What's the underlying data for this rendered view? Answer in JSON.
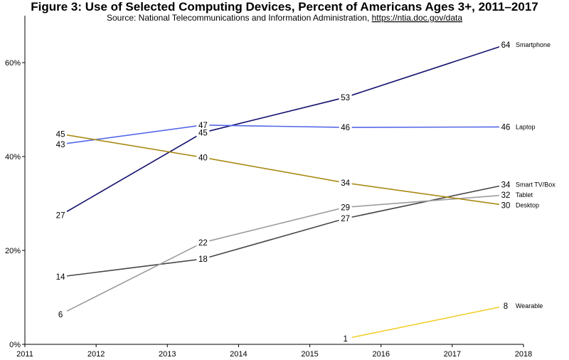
{
  "chart_data": {
    "type": "line",
    "title": "Figure 3: Use of Selected Computing Devices, Percent of Americans Ages 3+, 2011–2017",
    "subtitle": "Source: National Telecommunications and Information Administration, ",
    "subtitle_link": "https://ntia.doc.gov/data",
    "xlabel": "",
    "ylabel": "",
    "xlim": [
      2011,
      2018
    ],
    "ylim": [
      0,
      70
    ],
    "x_ticks": [
      2011,
      2012,
      2013,
      2014,
      2015,
      2016,
      2017,
      2018
    ],
    "y_ticks": [
      0,
      20,
      40,
      60
    ],
    "y_tick_suffix": "%",
    "grid": false,
    "legend": "end-of-line labels",
    "series": [
      {
        "name": "Smartphone",
        "color": "#14106e",
        "x": [
          2011.5,
          2013.5,
          2015.5,
          2017.75
        ],
        "y": [
          27.5,
          45.1,
          52.6,
          63.8
        ],
        "labels": [
          "27",
          "45",
          "53",
          "64"
        ]
      },
      {
        "name": "Laptop",
        "color": "#5468e8",
        "x": [
          2011.5,
          2013.5,
          2015.5,
          2017.75
        ],
        "y": [
          42.6,
          46.7,
          46.2,
          46.3
        ],
        "labels": [
          "43",
          "47",
          "46",
          "46"
        ]
      },
      {
        "name": "Smart TV/Box",
        "color": "#464646",
        "x": [
          2011.5,
          2013.5,
          2015.5,
          2017.75
        ],
        "y": [
          14.4,
          18.2,
          26.8,
          34.0
        ],
        "labels": [
          "14",
          "18",
          "27",
          "34"
        ]
      },
      {
        "name": "Tablet",
        "color": "#9d9d9d",
        "x": [
          2011.5,
          2013.5,
          2015.5,
          2017.75
        ],
        "y": [
          6.4,
          21.7,
          29.2,
          31.8
        ],
        "labels": [
          "6",
          "22",
          "29",
          "32"
        ]
      },
      {
        "name": "Desktop",
        "color": "#a88a14",
        "x": [
          2011.5,
          2013.5,
          2015.5,
          2017.75
        ],
        "y": [
          44.8,
          39.8,
          34.4,
          29.6
        ],
        "labels": [
          "45",
          "40",
          "34",
          "30"
        ]
      },
      {
        "name": "Wearable",
        "color": "#f2cf2e",
        "x": [
          2015.5,
          2017.75
        ],
        "y": [
          1.2,
          8.2
        ],
        "labels": [
          "1",
          "8"
        ]
      }
    ]
  }
}
